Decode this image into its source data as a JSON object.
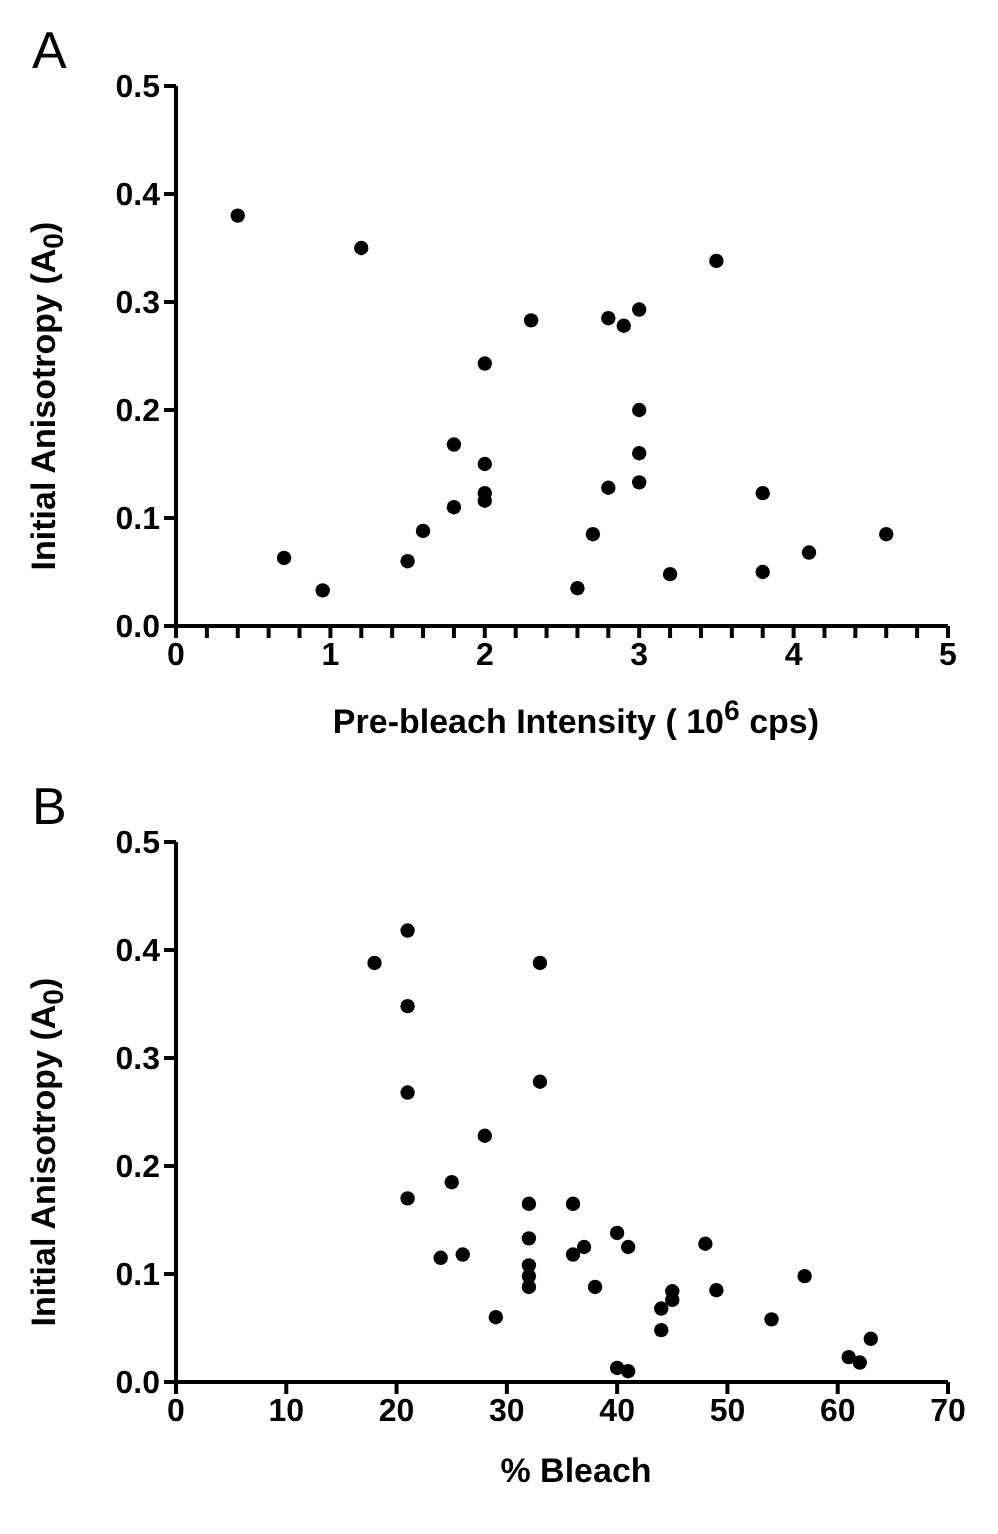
{
  "chart_data": [
    {
      "type": "scatter",
      "title": "A",
      "xlabel": "Pre-bleach Intensity ( 10$^{6}$ cps)",
      "ylabel": "Initial Anisotropy (A$_{0}$)",
      "color": "#000000",
      "marker": "circle",
      "x": [
        0.4,
        0.7,
        0.95,
        1.2,
        1.5,
        1.6,
        1.8,
        1.8,
        2,
        2,
        2,
        2,
        2.3,
        2.6,
        2.7,
        2.8,
        2.8,
        2.9,
        3,
        3,
        3,
        3,
        3.2,
        3.5,
        3.8,
        3.8,
        4.1,
        4.6
      ],
      "values": [
        0.38,
        0.063,
        0.033,
        0.35,
        0.06,
        0.088,
        0.168,
        0.11,
        0.243,
        0.15,
        0.123,
        0.116,
        0.283,
        0.035,
        0.085,
        0.285,
        0.128,
        0.278,
        0.293,
        0.2,
        0.16,
        0.133,
        0.048,
        0.338,
        0.123,
        0.05,
        0.068,
        0.085
      ],
      "xlim": [
        0,
        5
      ],
      "ylim": [
        0,
        0.5
      ],
      "xticks": [
        0,
        {
          "value": 0.2,
          "label": null
        },
        {
          "value": 0.4,
          "label": null
        },
        {
          "value": 0.6,
          "label": null
        },
        {
          "value": 0.8,
          "label": null
        },
        1,
        {
          "value": 1.2,
          "label": null
        },
        {
          "value": 1.4,
          "label": null
        },
        {
          "value": 1.6,
          "label": null
        },
        {
          "value": 1.8,
          "label": null
        },
        2,
        {
          "value": 2.2,
          "label": null
        },
        {
          "value": 2.4,
          "label": null
        },
        {
          "value": 2.6,
          "label": null
        },
        {
          "value": 2.8,
          "label": null
        },
        3,
        {
          "value": 3.2,
          "label": null
        },
        {
          "value": 3.4,
          "label": null
        },
        {
          "value": 3.6,
          "label": null
        },
        {
          "value": 3.8,
          "label": null
        },
        4,
        {
          "value": 4.2,
          "label": null
        },
        {
          "value": 4.4,
          "label": null
        },
        {
          "value": 4.6,
          "label": null
        },
        {
          "value": 4.8,
          "label": null
        },
        5
      ],
      "yticks": [
        {
          "value": 0,
          "label": "0.0"
        },
        0.1,
        0.2,
        0.3,
        0.4,
        0.5
      ]
    },
    {
      "type": "scatter",
      "title": "B",
      "xlabel": "% Bleach",
      "ylabel": "Initial Anisotropy (A$_{0}$)",
      "color": "#000000",
      "marker": "circle",
      "x": [
        18,
        21,
        21,
        21,
        21,
        24,
        25,
        26,
        28,
        29,
        32,
        32,
        32,
        32,
        32,
        33,
        33,
        36,
        36,
        37,
        38,
        40,
        40,
        41,
        41,
        44,
        44,
        45,
        45,
        48,
        49,
        54,
        57,
        61,
        62,
        63
      ],
      "values": [
        0.388,
        0.418,
        0.348,
        0.268,
        0.17,
        0.115,
        0.185,
        0.118,
        0.228,
        0.06,
        0.165,
        0.133,
        0.108,
        0.098,
        0.088,
        0.388,
        0.278,
        0.165,
        0.118,
        0.125,
        0.088,
        0.138,
        0.013,
        0.125,
        0.01,
        0.068,
        0.048,
        0.084,
        0.076,
        0.128,
        0.085,
        0.058,
        0.098,
        0.023,
        0.018,
        0.04
      ],
      "xlim": [
        0,
        70
      ],
      "ylim": [
        0,
        0.5
      ],
      "xticks": [
        0,
        10,
        20,
        30,
        40,
        50,
        60,
        70
      ],
      "yticks": [
        {
          "value": 0,
          "label": "0.0"
        },
        0.1,
        0.2,
        0.3,
        0.4,
        0.5
      ]
    }
  ]
}
